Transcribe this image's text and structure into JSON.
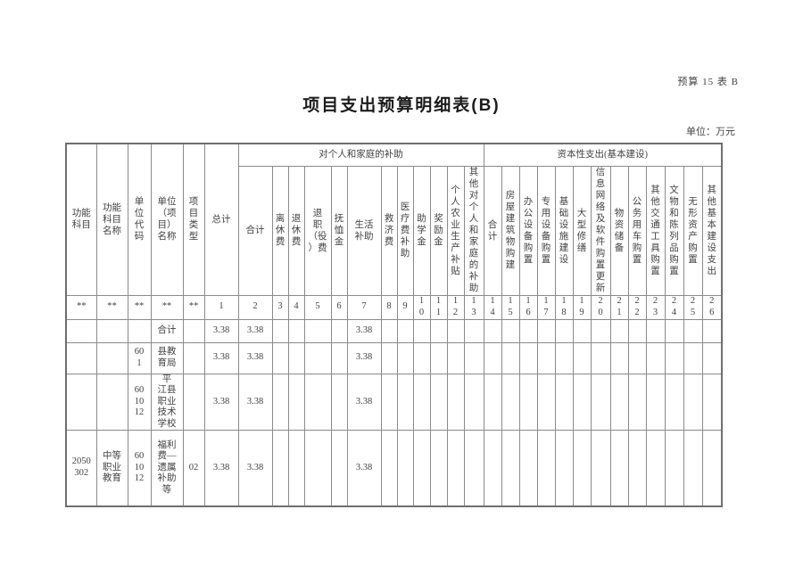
{
  "page": {
    "form_code": "预算 15 表 B",
    "title": "项目支出预算明细表(B)",
    "unit_note": "单位：万元"
  },
  "table": {
    "fixed_columns": [
      "功能\n科目",
      "功能\n科目\n名称",
      "单\n位\n代\n码",
      "单位\n（项\n目）\n名称",
      "项\n目\n类\n型",
      "总计"
    ],
    "groups": [
      {
        "label": "对个人和家庭的补助"
      },
      {
        "label": "资本性支出(基本建设)"
      }
    ],
    "personal_subsidy_columns": [
      "合计",
      "离\n休\n费",
      "退\n休\n费",
      "退\n职\n（役\n）费",
      "抚\n恤\n金",
      "生活\n补助",
      "救\n济\n费",
      "医\n疗\n费\n补\n助",
      "助\n学\n金",
      "奖\n励\n金",
      "个\n人\n农\n业\n生\n产\n补\n贴",
      "其\n他\n对\n个\n人\n和\n家\n庭\n的\n补\n助"
    ],
    "capital_columns": [
      "合\n计",
      "房\n屋\n建\n筑\n物\n购\n建",
      "办\n公\n设\n备\n购\n置",
      "专\n用\n设\n备\n购\n置",
      "基\n础\n设\n施\n建\n设",
      "大\n型\n修\n缮",
      "信\n息\n网\n络\n及\n软\n件\n购\n置\n更\n新",
      "物\n资\n储\n备",
      "公\n务\n用\n车\n购\n置",
      "其\n他\n交\n通\n工\n具\n购\n置",
      "文\n物\n和\n陈\n列\n品\n购\n置",
      "无\n形\n资\n产\n购\n置",
      "其\n他\n基\n本\n建\n设\n支\n出"
    ],
    "index_row": [
      "**",
      "**",
      "**",
      "**",
      "**",
      "1",
      "2",
      "3",
      "4",
      "5",
      "6",
      "7",
      "8",
      "9",
      "1\n0",
      "1\n1",
      "1\n2",
      "1\n3",
      "1\n4",
      "1\n5",
      "1\n6",
      "1\n7",
      "1\n8",
      "1\n9",
      "2\n0",
      "2\n1",
      "2\n2",
      "2\n3",
      "2\n4",
      "2\n5",
      "2\n6"
    ],
    "rows": [
      [
        "",
        "",
        "",
        "合计",
        "",
        "3.38",
        "3.38",
        "",
        "",
        "",
        "",
        "3.38",
        "",
        "",
        "",
        "",
        "",
        "",
        "",
        "",
        "",
        "",
        "",
        "",
        "",
        "",
        "",
        "",
        "",
        "",
        ""
      ],
      [
        "",
        "",
        "60\n1",
        "县教\n育局",
        "",
        "3.38",
        "3.38",
        "",
        "",
        "",
        "",
        "3.38",
        "",
        "",
        "",
        "",
        "",
        "",
        "",
        "",
        "",
        "",
        "",
        "",
        "",
        "",
        "",
        "",
        "",
        "",
        ""
      ],
      [
        "",
        "",
        "60\n10\n12",
        "平\n江县\n职业\n技术\n学校",
        "",
        "3.38",
        "3.38",
        "",
        "",
        "",
        "",
        "3.38",
        "",
        "",
        "",
        "",
        "",
        "",
        "",
        "",
        "",
        "",
        "",
        "",
        "",
        "",
        "",
        "",
        "",
        "",
        ""
      ],
      [
        "2050\n302",
        "中等\n职业\n教育",
        "60\n10\n12",
        "福利\n费—\n遗属\n补助\n等",
        "02",
        "3.38",
        "3.38",
        "",
        "",
        "",
        "",
        "3.38",
        "",
        "",
        "",
        "",
        "",
        "",
        "",
        "",
        "",
        "",
        "",
        "",
        "",
        "",
        "",
        "",
        "",
        "",
        ""
      ]
    ]
  }
}
